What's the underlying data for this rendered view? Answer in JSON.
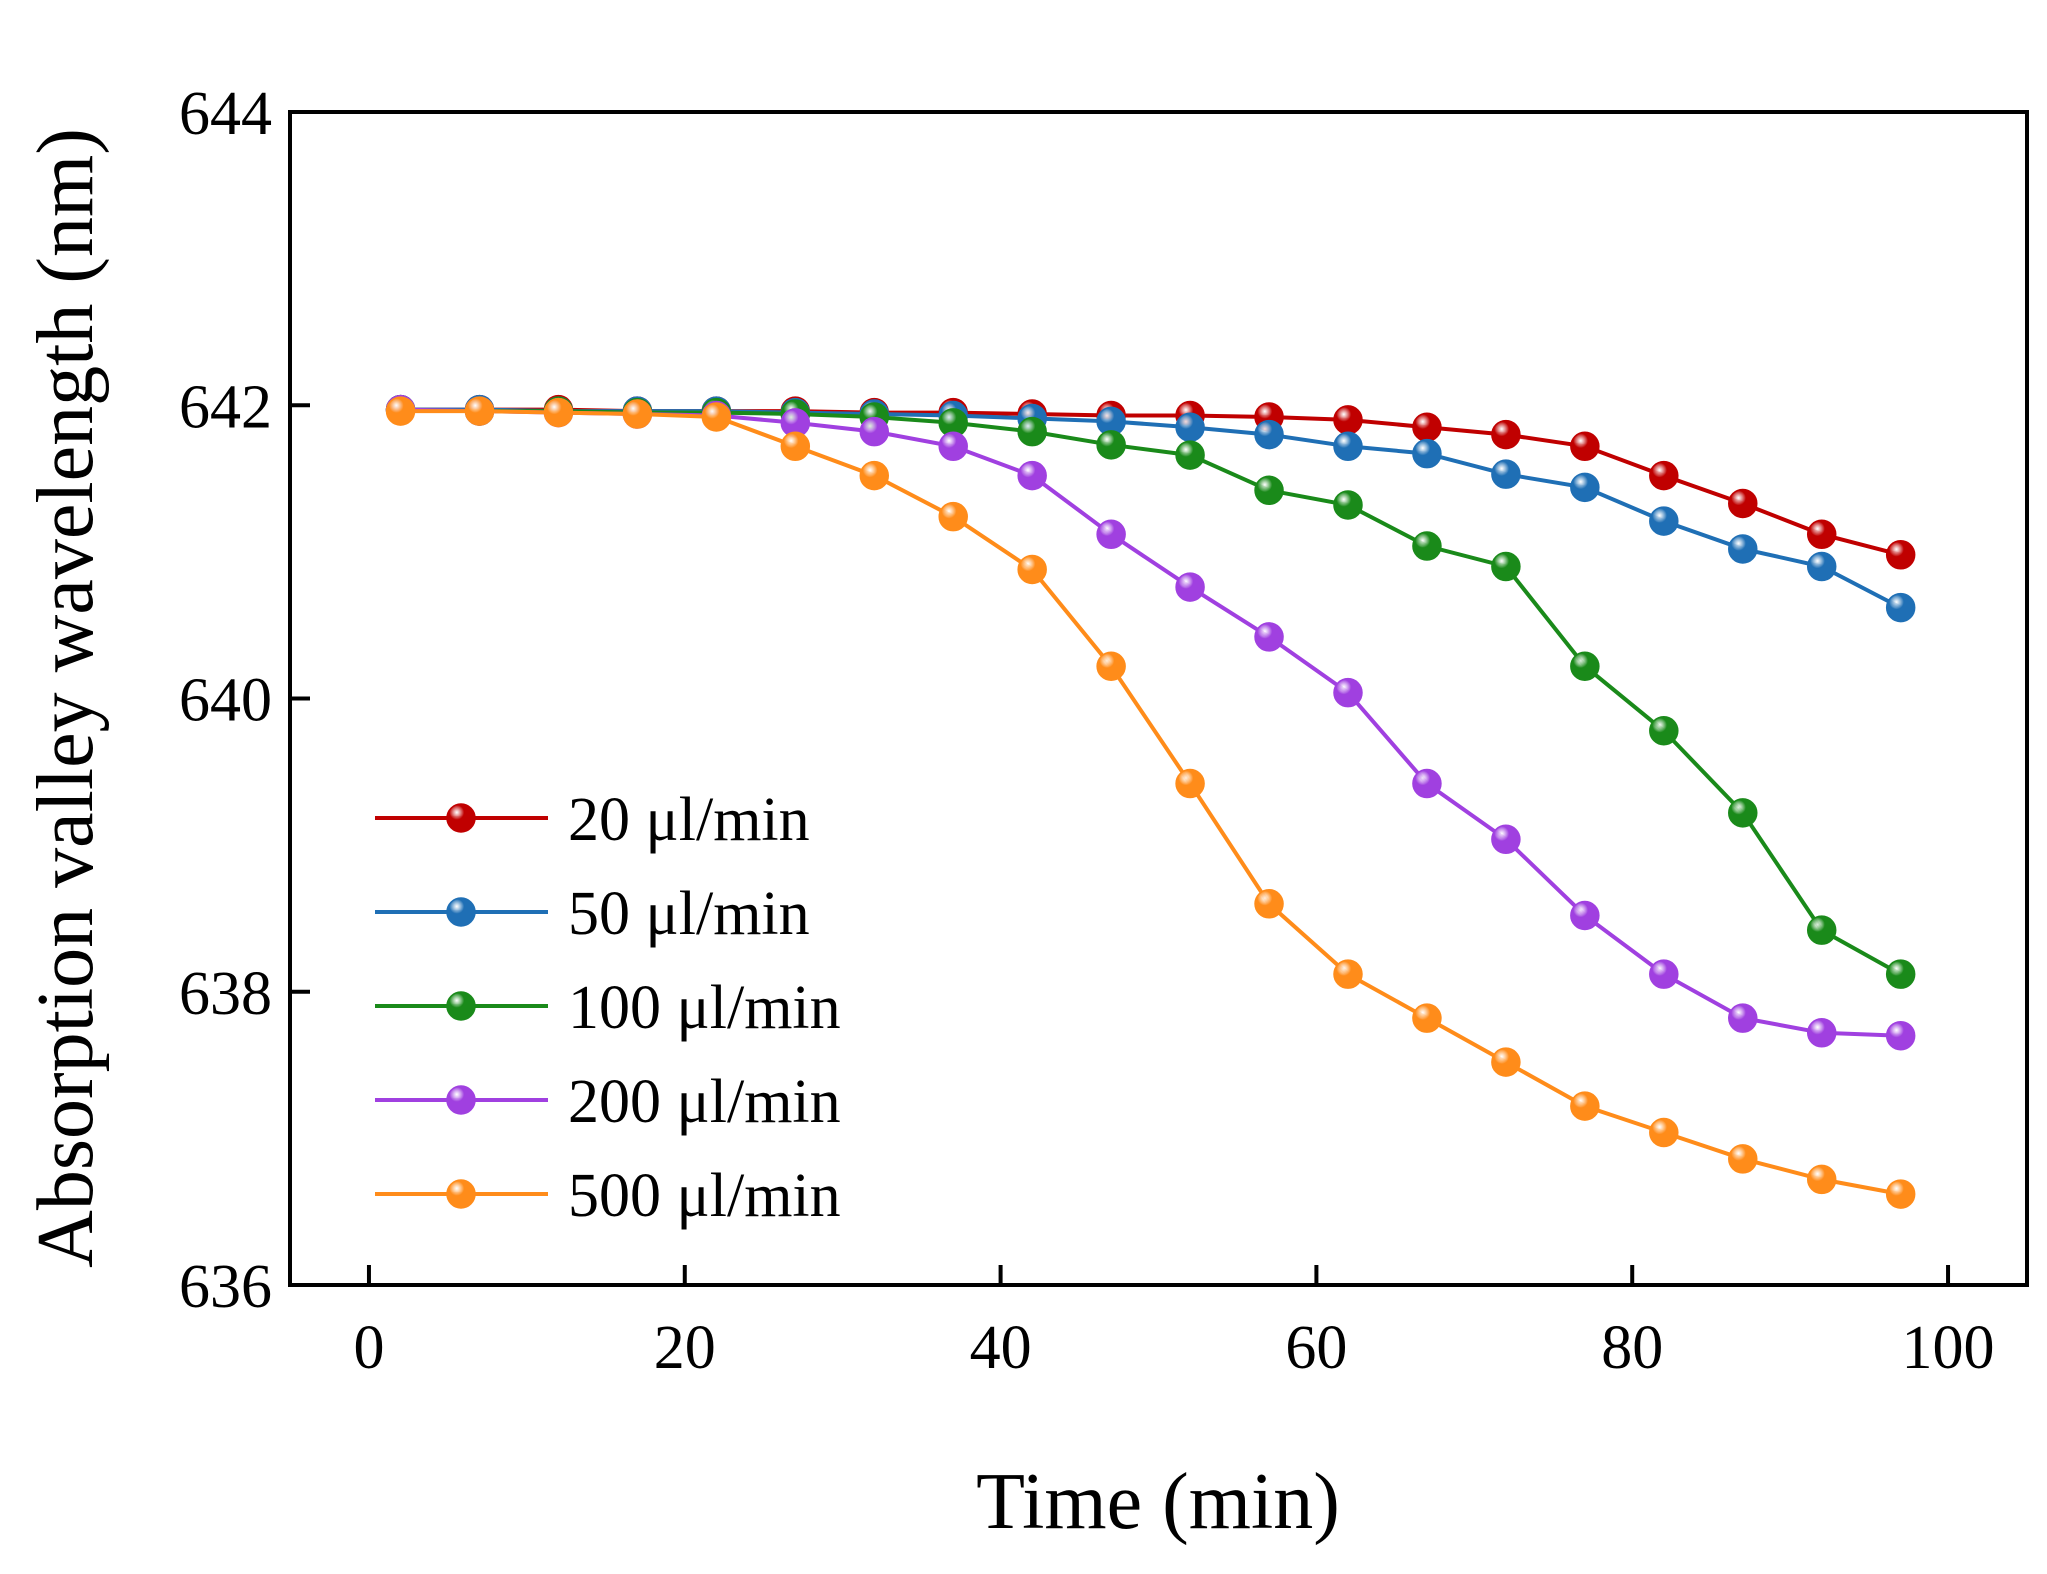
{
  "chart_data": {
    "type": "line",
    "title": "",
    "xlabel": "Time (min)",
    "ylabel": "Absorption valley wavelength (nm)",
    "xlim": [
      -5,
      105
    ],
    "ylim": [
      636,
      644
    ],
    "xticks": [
      0,
      20,
      40,
      60,
      80,
      100
    ],
    "yticks": [
      636,
      638,
      640,
      642,
      644
    ],
    "grid": false,
    "legend_position": "lower-left",
    "x": [
      2,
      7,
      12,
      17,
      22,
      27,
      32,
      37,
      42,
      47,
      52,
      57,
      62,
      67,
      72,
      77,
      82,
      87,
      92,
      97
    ],
    "series": [
      {
        "name": "20 μl/min",
        "color": "#c00000",
        "values": [
          641.97,
          641.97,
          641.97,
          641.96,
          641.96,
          641.96,
          641.95,
          641.95,
          641.94,
          641.93,
          641.93,
          641.92,
          641.9,
          641.85,
          641.8,
          641.72,
          641.52,
          641.33,
          641.12,
          640.98
        ]
      },
      {
        "name": "50 μl/min",
        "color": "#1f6fb5",
        "values": [
          641.97,
          641.97,
          641.96,
          641.96,
          641.96,
          641.95,
          641.94,
          641.93,
          641.91,
          641.89,
          641.85,
          641.8,
          641.72,
          641.67,
          641.53,
          641.44,
          641.21,
          641.02,
          640.9,
          640.62
        ]
      },
      {
        "name": "100 μl/min",
        "color": "#1a8a1a",
        "values": [
          641.97,
          641.96,
          641.96,
          641.95,
          641.95,
          641.94,
          641.92,
          641.88,
          641.82,
          641.73,
          641.66,
          641.42,
          641.32,
          641.04,
          640.9,
          640.22,
          639.78,
          639.22,
          638.42,
          638.12
        ]
      },
      {
        "name": "200 μl/min",
        "color": "#a040e0",
        "values": [
          641.97,
          641.96,
          641.95,
          641.94,
          641.93,
          641.88,
          641.82,
          641.72,
          641.52,
          641.12,
          640.76,
          640.42,
          640.04,
          639.42,
          639.04,
          638.52,
          638.12,
          637.82,
          637.72,
          637.7
        ]
      },
      {
        "name": "500 μl/min",
        "color": "#ff8c1a",
        "values": [
          641.96,
          641.96,
          641.95,
          641.94,
          641.92,
          641.72,
          641.52,
          641.24,
          640.88,
          640.22,
          639.42,
          638.6,
          638.12,
          637.82,
          637.52,
          637.22,
          637.04,
          636.86,
          636.72,
          636.62
        ]
      }
    ]
  }
}
